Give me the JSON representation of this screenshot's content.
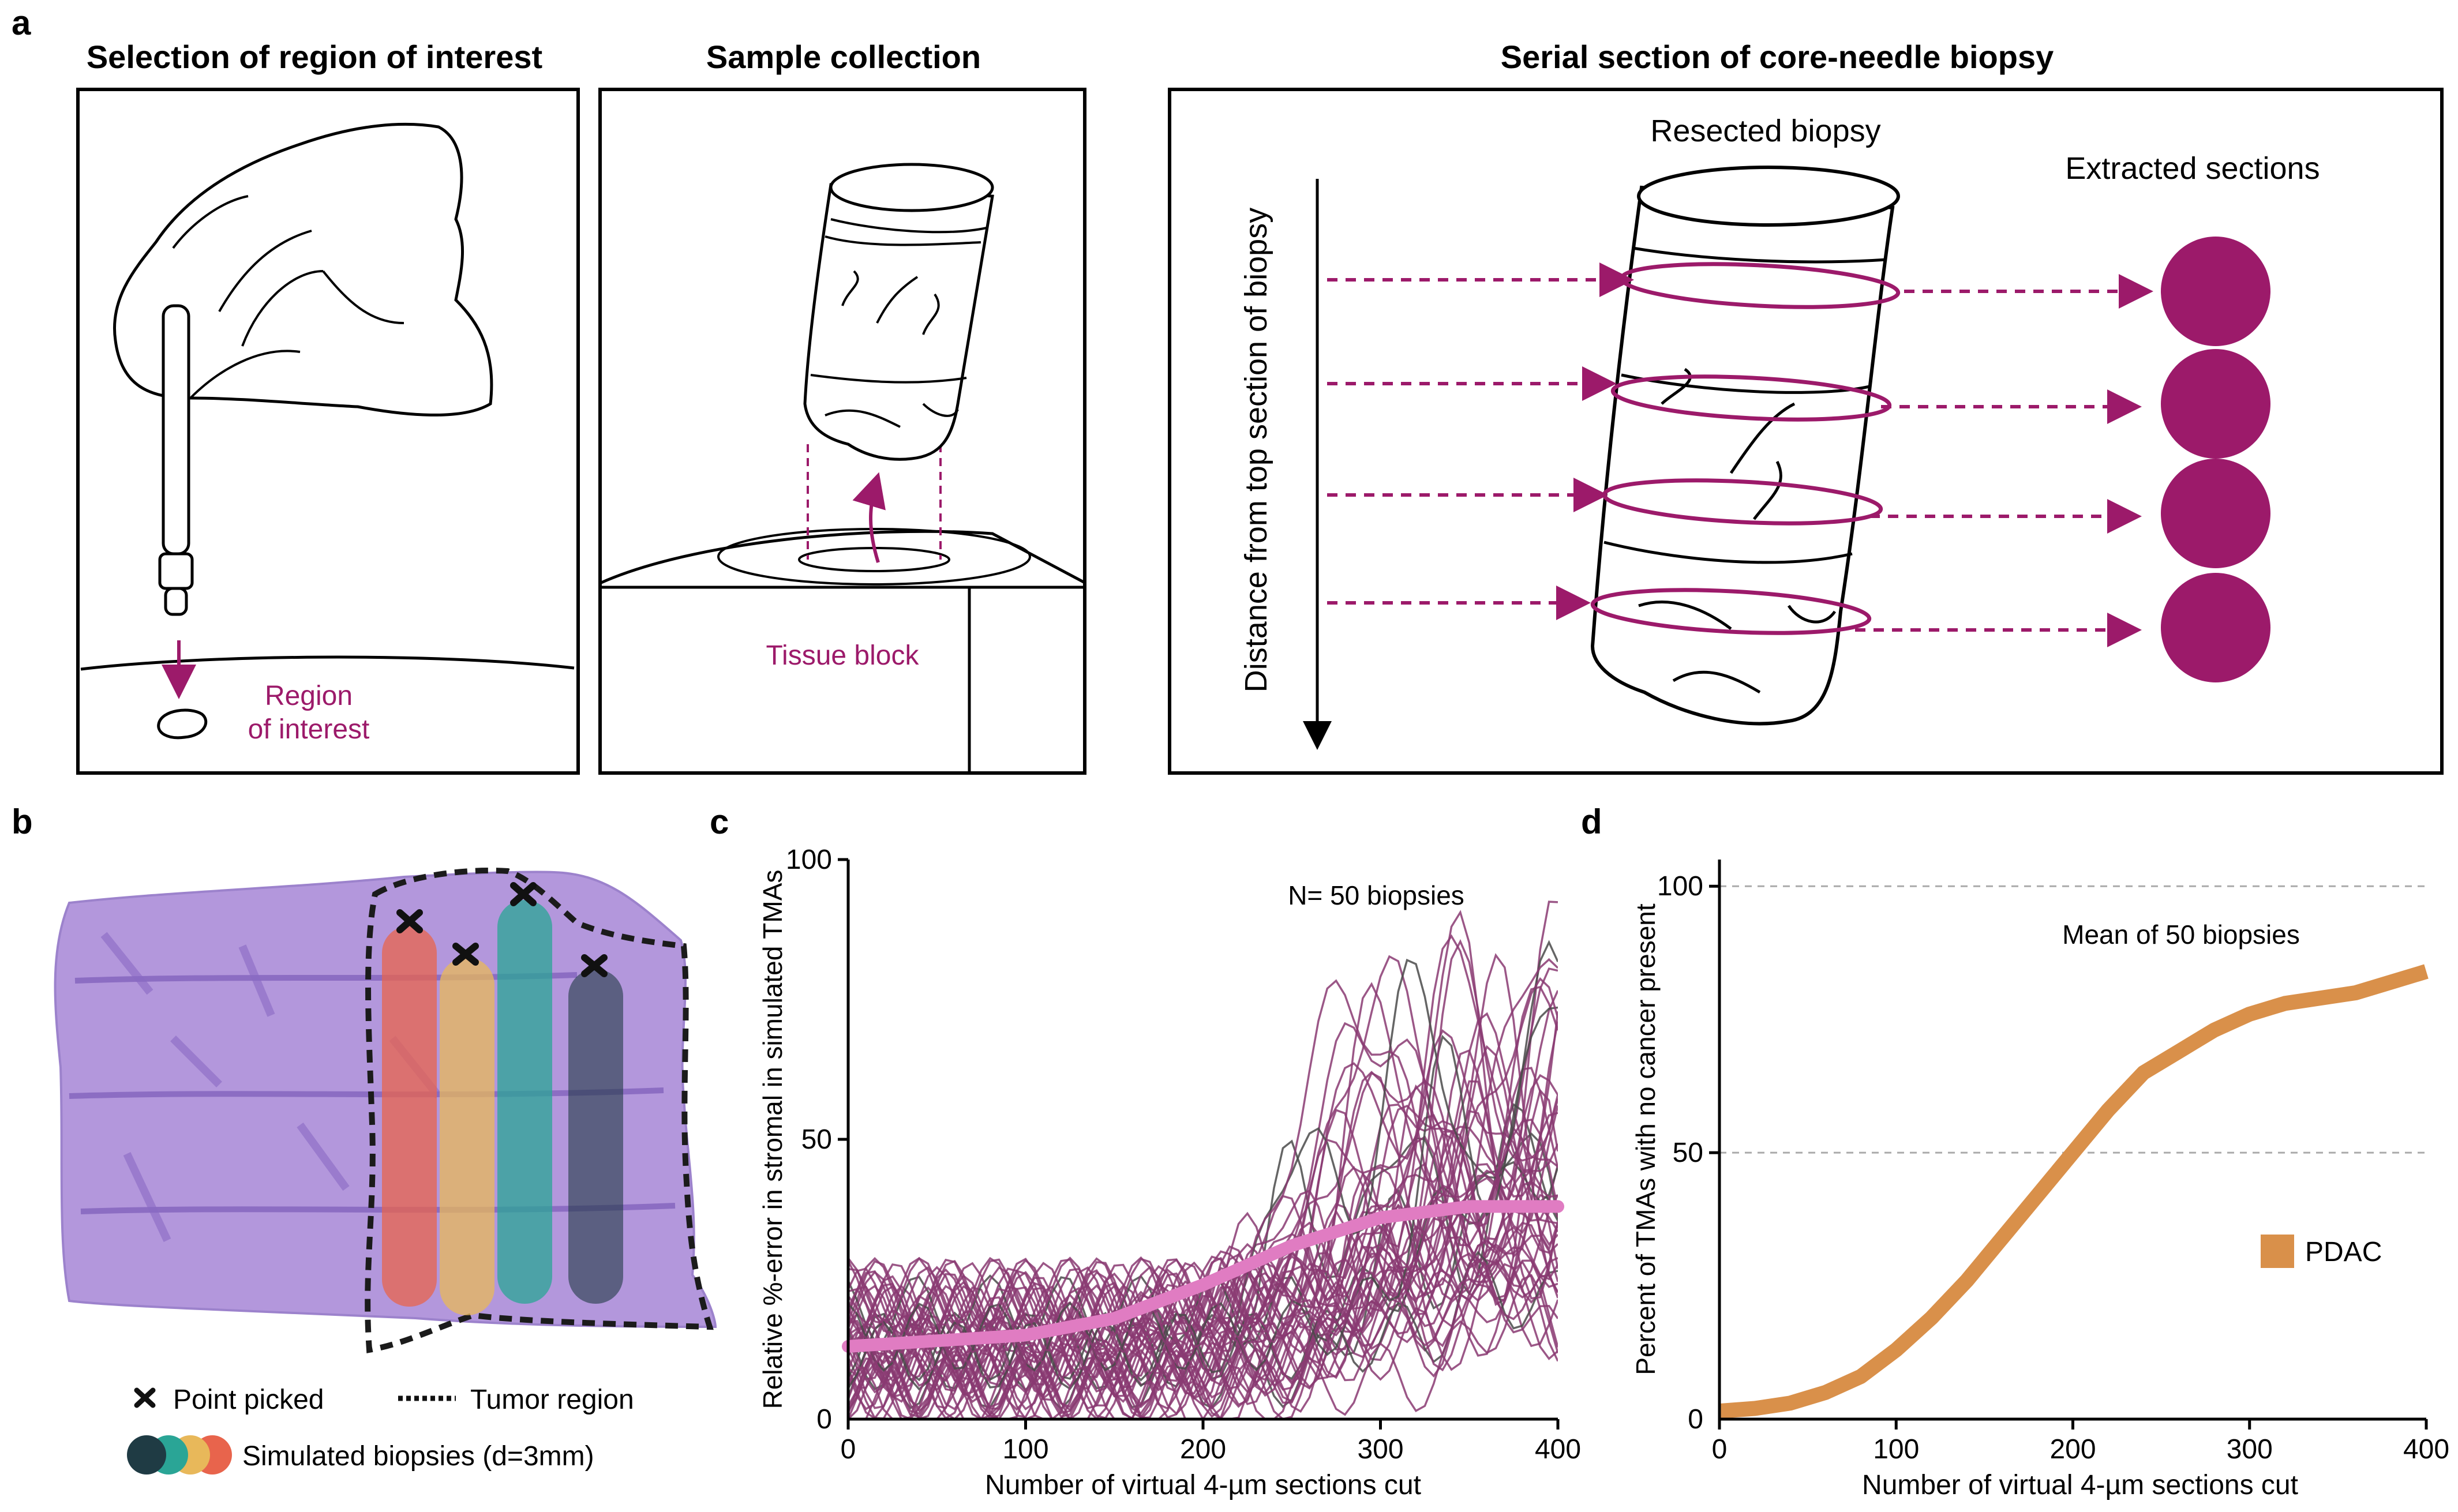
{
  "panels": {
    "a": {
      "letter": "a",
      "titles": [
        "Selection of region of interest",
        "Sample collection",
        "Serial section of core-needle biopsy"
      ],
      "roi_label_lines": [
        "Region",
        "of interest"
      ],
      "tissue_block_label": "Tissue block",
      "resected_label": "Resected biopsy",
      "extracted_label": "Extracted sections",
      "depth_axis_label": "Distance from top section of biopsy"
    },
    "b": {
      "letter": "b",
      "legend_point": "Point picked",
      "legend_tumor": "Tumor region",
      "legend_biopsies": "Simulated biopsies (d=3mm)"
    },
    "c": {
      "letter": "c",
      "annotation": "N= 50 biopsies"
    },
    "d": {
      "letter": "d",
      "annotation": "Mean of 50 biopsies",
      "legend": "PDAC"
    }
  },
  "colors": {
    "accent": "#9c1a6a",
    "tissue": "#a88ad4",
    "tissue_dark": "#7c5bb8",
    "biopsy_red": "#e8644c",
    "biopsy_yellow": "#e8b85a",
    "biopsy_teal": "#2aa596",
    "biopsy_dark": "#1f3b44",
    "trace_purple": "#8a3a72",
    "trace_gray": "#4a4a4a",
    "mean_pink": "#e07cc2",
    "pdac_orange": "#d9904a"
  },
  "chart_data": [
    {
      "id": "c",
      "type": "line",
      "ylabel": "Relative %-error in stromal in simulated TMAs",
      "xlabel": "Number of virtual 4-µm sections cut",
      "xlim": [
        0,
        400
      ],
      "ylim": [
        0,
        100
      ],
      "xticks": [
        0,
        100,
        200,
        300,
        400
      ],
      "yticks": [
        50,
        100
      ],
      "n_traces": 50,
      "mean_series": {
        "x": [
          0,
          50,
          100,
          150,
          200,
          250,
          300,
          350,
          400
        ],
        "y": [
          13,
          14,
          15,
          18,
          24,
          31,
          36,
          38,
          38
        ]
      }
    },
    {
      "id": "d",
      "type": "line",
      "ylabel": "Percent of TMAs with no cancer present",
      "xlabel": "Number of virtual 4-µm sections cut",
      "xlim": [
        0,
        400
      ],
      "ylim": [
        0,
        105
      ],
      "xticks": [
        0,
        100,
        200,
        300,
        400
      ],
      "yticks": [
        50,
        100
      ],
      "grid_y": [
        50,
        100
      ],
      "series": [
        {
          "name": "PDAC",
          "x": [
            0,
            20,
            40,
            60,
            80,
            100,
            120,
            140,
            160,
            180,
            200,
            220,
            240,
            260,
            280,
            300,
            320,
            340,
            360,
            380,
            400
          ],
          "y": [
            1.5,
            2,
            3,
            5,
            8,
            13,
            19,
            26,
            34,
            42,
            50,
            58,
            65,
            69,
            73,
            76,
            78,
            79,
            80,
            82,
            84
          ]
        }
      ]
    }
  ]
}
